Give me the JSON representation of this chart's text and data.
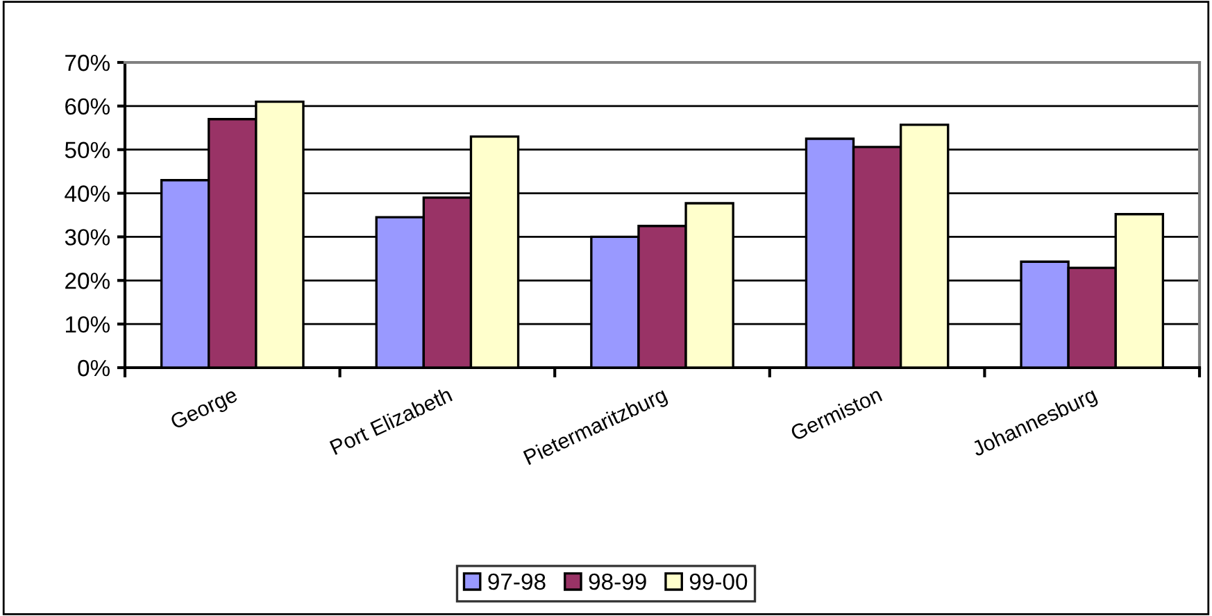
{
  "chart_data": {
    "type": "bar",
    "categories": [
      "George",
      "Port Elizabeth",
      "Pietermaritzburg",
      "Germiston",
      "Johannesburg"
    ],
    "series": [
      {
        "name": "97-98",
        "color": "#9999ff",
        "values": [
          43,
          34.5,
          30,
          52.5,
          24.3
        ]
      },
      {
        "name": "98-99",
        "color": "#993366",
        "values": [
          57,
          39,
          32.5,
          50.6,
          22.9
        ]
      },
      {
        "name": "99-00",
        "color": "#ffffcc",
        "values": [
          61,
          53,
          37.7,
          55.7,
          35.2
        ]
      }
    ],
    "ylim": [
      0,
      70
    ],
    "yticks": [
      {
        "value": 0,
        "label": "0%"
      },
      {
        "value": 10,
        "label": "10%"
      },
      {
        "value": 20,
        "label": "20%"
      },
      {
        "value": 30,
        "label": "30%"
      },
      {
        "value": 40,
        "label": "40%"
      },
      {
        "value": 50,
        "label": "50%"
      },
      {
        "value": 60,
        "label": "60%"
      },
      {
        "value": 70,
        "label": "70%"
      }
    ],
    "grid": "y",
    "legend": "bottom"
  }
}
